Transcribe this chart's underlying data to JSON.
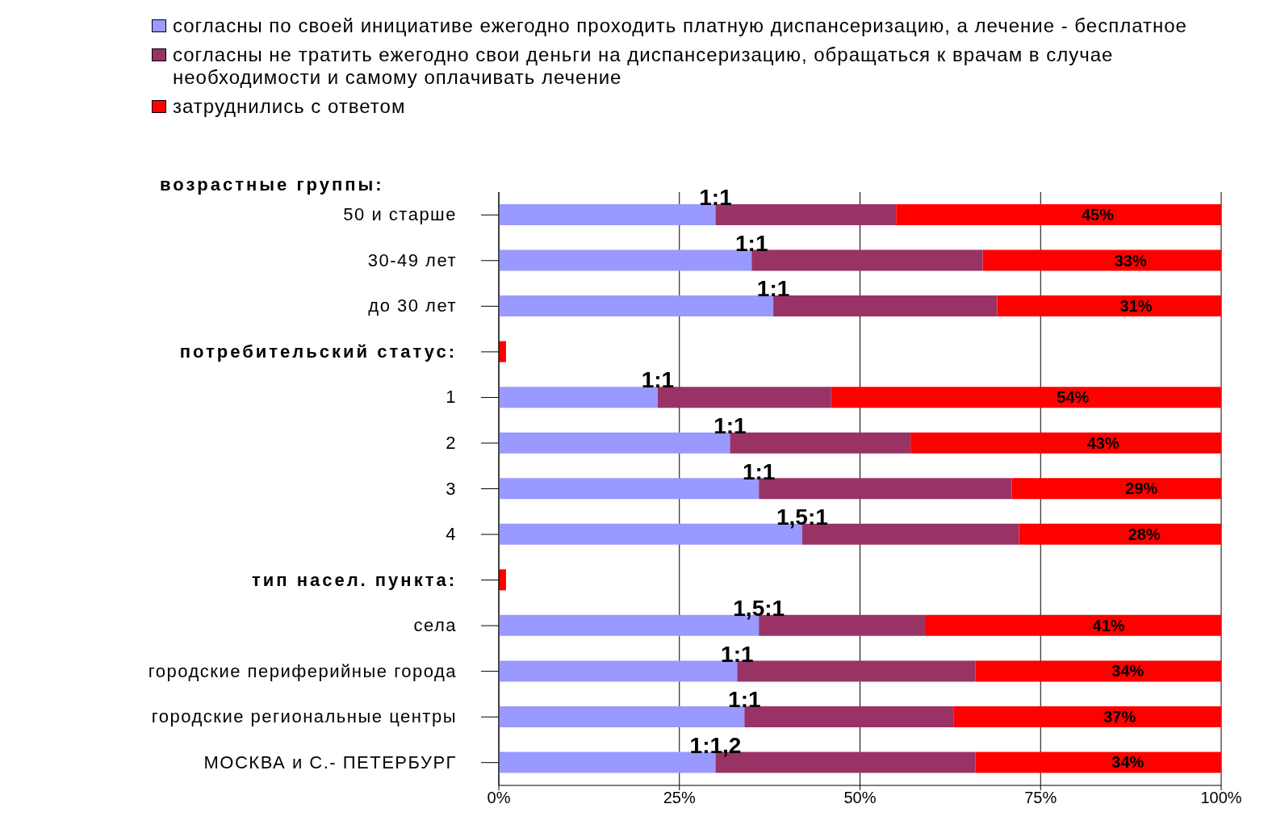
{
  "chart_data": {
    "type": "bar",
    "orientation": "horizontal",
    "stacked": true,
    "categories": [
      "50 и старше",
      "30-49 лет",
      "до 30 лет",
      null,
      "1",
      "2",
      "3",
      "4",
      null,
      "села",
      "городские периферийные города",
      "городские региональные центры",
      "МОСКВА и С.- ПЕТЕРБУРГ"
    ],
    "series": [
      {
        "name": "согласны по своей инициативе ежегодно проходить платную диспансеризацию, а лечение - бесплатное",
        "color": "#9999ff",
        "values": [
          30,
          35,
          38,
          null,
          22,
          32,
          36,
          42,
          null,
          36,
          33,
          34,
          30
        ]
      },
      {
        "name": "согласны не тратить ежегодно свои деньги на диспансеризацию, обращаться к врачам в случае необходимости и самому оплачивать лечение",
        "color": "#993366",
        "values": [
          25,
          32,
          31,
          null,
          24,
          25,
          35,
          30,
          null,
          23,
          33,
          29,
          36
        ]
      },
      {
        "name": "затруднились с ответом",
        "color": "#ff0000",
        "values": [
          45,
          33,
          31,
          1,
          54,
          43,
          29,
          28,
          1,
          41,
          34,
          37,
          34
        ],
        "value_labels": [
          "45%",
          "33%",
          "31%",
          null,
          "54%",
          "43%",
          "29%",
          "28%",
          null,
          "41%",
          "34%",
          "37%",
          "34%"
        ]
      }
    ],
    "xlim": [
      0,
      100
    ],
    "xticks": [
      {
        "value": 0,
        "label": "0%"
      },
      {
        "value": 25,
        "label": "25%"
      },
      {
        "value": 50,
        "label": "50%"
      },
      {
        "value": 75,
        "label": "75%"
      },
      {
        "value": 100,
        "label": "100%"
      }
    ],
    "grid": "x",
    "legend": "top",
    "annotations": [
      "возрастные группы:",
      "потребительский статус:",
      "тип насел. пункта:",
      {
        "text": "1:1",
        "x": 30,
        "y": "50 и старше"
      },
      {
        "text": "1:1",
        "x": 35,
        "y": "30-49 лет"
      },
      {
        "text": "1:1",
        "x": 38,
        "y": "до 30 лет"
      },
      {
        "text": "1:1",
        "x": 22,
        "y": "1"
      },
      {
        "text": "1:1",
        "x": 32,
        "y": "2"
      },
      {
        "text": "1:1",
        "x": 36,
        "y": "3"
      },
      {
        "text": "1,5:1",
        "x": 42,
        "y": "4"
      },
      {
        "text": "1,5:1",
        "x": 36,
        "y": "села"
      },
      {
        "text": "1:1",
        "x": 33,
        "y": "городские периферийные города"
      },
      {
        "text": "1:1",
        "x": 34,
        "y": "городские региональные центры"
      },
      {
        "text": "1:1,2",
        "x": 30,
        "y": "МОСКВА и С.- ПЕТЕРБУРГ"
      }
    ]
  }
}
